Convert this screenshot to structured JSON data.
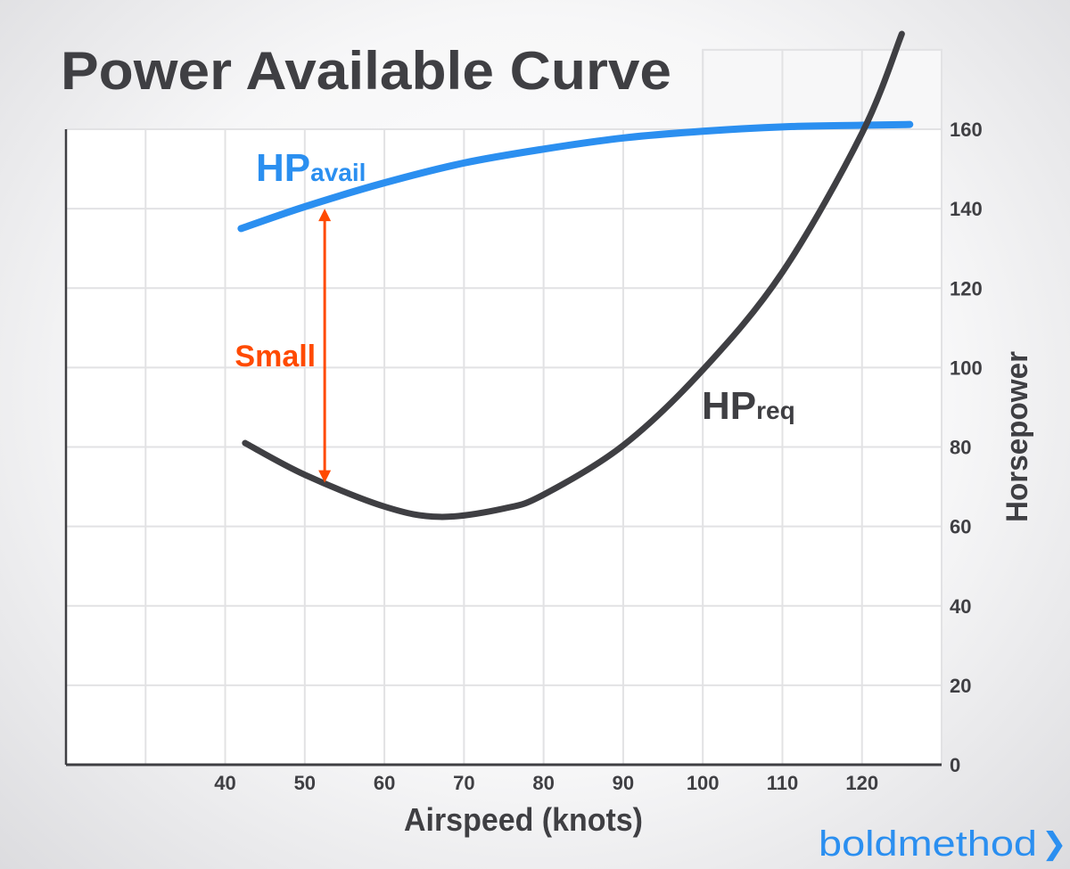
{
  "chart_data": {
    "type": "line",
    "title": "Power Available Curve",
    "xlabel": "Airspeed (knots)",
    "ylabel": "Horsepower",
    "xlim": [
      20,
      130
    ],
    "ylim": [
      0,
      160
    ],
    "x_ticks": [
      "40",
      "50",
      "60",
      "70",
      "80",
      "90",
      "100",
      "110",
      "120"
    ],
    "y_ticks": [
      "0",
      "20",
      "40",
      "60",
      "80",
      "100",
      "120",
      "140",
      "160"
    ],
    "grid": true,
    "series": [
      {
        "name": "HPavail",
        "label_main": "HP",
        "label_sub": "avail",
        "color": "#2b8ff0",
        "x": [
          42,
          50,
          60,
          70,
          80,
          90,
          100,
          110,
          120,
          126
        ],
        "y": [
          135,
          140.5,
          146.5,
          151.5,
          155,
          157.8,
          159.5,
          160.6,
          161,
          161.2
        ]
      },
      {
        "name": "HPreq",
        "label_main": "HP",
        "label_sub": "req",
        "color": "#3f3f43",
        "x": [
          42.5,
          50,
          60,
          67,
          75,
          80,
          90,
          100,
          110,
          120,
          125
        ],
        "y": [
          81,
          73,
          65,
          62.4,
          64.5,
          68,
          80.4,
          99.4,
          124,
          159,
          184
        ]
      }
    ],
    "annotations": [
      {
        "text": "Small",
        "color": "#ff4a00",
        "x": 52.5,
        "y_from": 140,
        "y_to": 71
      }
    ]
  },
  "brand": {
    "name": "boldmethod",
    "chevron": "❯",
    "color": "#2b8ff0"
  }
}
